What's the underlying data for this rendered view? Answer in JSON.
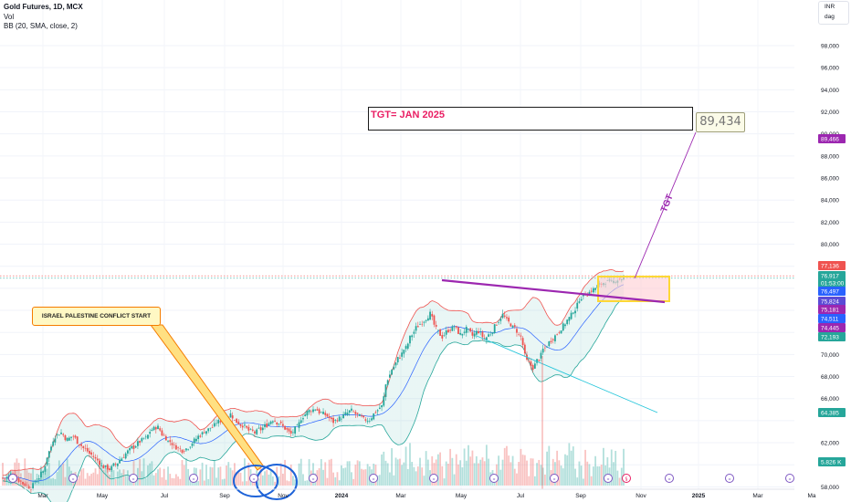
{
  "legend": {
    "symbol": "Gold Futures, 1D, MCX",
    "volume": "Vol",
    "bb": "BB (20, SMA, close, 2)"
  },
  "top_right": {
    "currency": "INR",
    "unit": "dag"
  },
  "annotations": {
    "target_box": "TGT= JAN 2025",
    "target_value": "89,434",
    "tgt_line_label": "TGT",
    "callout": "ISRAEL PALESTINE CONFLICT START"
  },
  "colors": {
    "up": "#26a69a",
    "down": "#ef5350",
    "bb_upper": "#ef5350",
    "bb_lower": "#26a69a",
    "bb_basis": "#2962ff",
    "purple": "#9c27b0",
    "highlight": "#fdd835"
  },
  "chart_data": {
    "type": "candlestick",
    "title": "Gold Futures, 1D, MCX",
    "y_axis": {
      "ticks": [
        58000,
        60000,
        62000,
        64000,
        66000,
        68000,
        70000,
        72000,
        74000,
        76000,
        78000,
        80000,
        82000,
        84000,
        86000,
        88000,
        90000,
        92000,
        94000,
        96000,
        98000
      ],
      "tick_labels": [
        "58,000",
        "",
        "62,000",
        "",
        "66,000",
        "68,000",
        "70,000",
        "",
        "",
        "",
        "",
        "80,000",
        "82,000",
        "84,000",
        "86,000",
        "88,000",
        "90,000",
        "92,000",
        "94,000",
        "96,000",
        "98,000"
      ],
      "range": [
        57500,
        100500
      ]
    },
    "x_axis": {
      "labels": [
        "Mar",
        "May",
        "Jul",
        "Sep",
        "Nov",
        "2024",
        "Mar",
        "May",
        "Jul",
        "Sep",
        "Nov",
        "2025",
        "Mar",
        "Ma"
      ]
    },
    "price_labels": [
      {
        "value": "89,466",
        "color": "#9c27b0"
      },
      {
        "value": "77,136",
        "color": "#ef5350"
      },
      {
        "value": "76,917",
        "color": "#26a69a"
      },
      {
        "value": "01:53:00",
        "color": "#26a69a"
      },
      {
        "value": "76,497",
        "color": "#2962ff"
      },
      {
        "value": "75,824",
        "color": "#5b4bd6"
      },
      {
        "value": "75,181",
        "color": "#9c27b0"
      },
      {
        "value": "74,511",
        "color": "#2962ff"
      },
      {
        "value": "74,445",
        "color": "#9c27b0"
      },
      {
        "value": "72,193",
        "color": "#26a69a"
      },
      {
        "value": "64,385",
        "color": "#26a69a"
      },
      {
        "value": "5.826 K",
        "color": "#26a69a"
      }
    ],
    "series": [
      {
        "name": "Close",
        "close": [
          58800,
          59200,
          58600,
          58200,
          57900,
          58600,
          59400,
          61200,
          62600,
          62900,
          62300,
          62600,
          61900,
          61400,
          60900,
          60400,
          59800,
          59600,
          60000,
          60600,
          61200,
          61600,
          62100,
          62400,
          63200,
          63400,
          62600,
          62100,
          61600,
          61300,
          61600,
          62200,
          62700,
          63100,
          63400,
          63900,
          64200,
          64600,
          63900,
          63600,
          63100,
          62900,
          63200,
          63600,
          64100,
          63800,
          63300,
          62800,
          63400,
          64400,
          64900,
          65100,
          64700,
          64400,
          63900,
          64200,
          64600,
          64900,
          64500,
          64100,
          64100,
          64800,
          65300,
          67800,
          68900,
          69800,
          70600,
          71800,
          72600,
          73100,
          73700,
          72300,
          71600,
          72200,
          72500,
          71800,
          72300,
          71700,
          72100,
          71400,
          71900,
          72800,
          73600,
          72900,
          72400,
          71600,
          69400,
          68800,
          69600,
          70600,
          71300,
          71900,
          72600,
          73300,
          74100,
          75200,
          75500,
          75900,
          76300,
          76600,
          76500,
          76800,
          76917
        ]
      },
      {
        "name": "BB Upper"
      },
      {
        "name": "BB Lower"
      },
      {
        "name": "BB Basis"
      }
    ],
    "lines": [
      {
        "name": "Resistance",
        "from": [
          "May 2024",
          76300
        ],
        "to": [
          "Oct 2024",
          75300
        ]
      },
      {
        "name": "TGT",
        "from": [
          "Oct 2024",
          76000
        ],
        "to": [
          "Dec 2024",
          89434
        ]
      },
      {
        "name": "Trend",
        "from": [
          "May 2024",
          71400
        ],
        "to": [
          "Nov 2024",
          64500
        ]
      }
    ],
    "zones": [
      {
        "name": "Breakout box",
        "y": [
          75300,
          77300
        ]
      }
    ]
  }
}
